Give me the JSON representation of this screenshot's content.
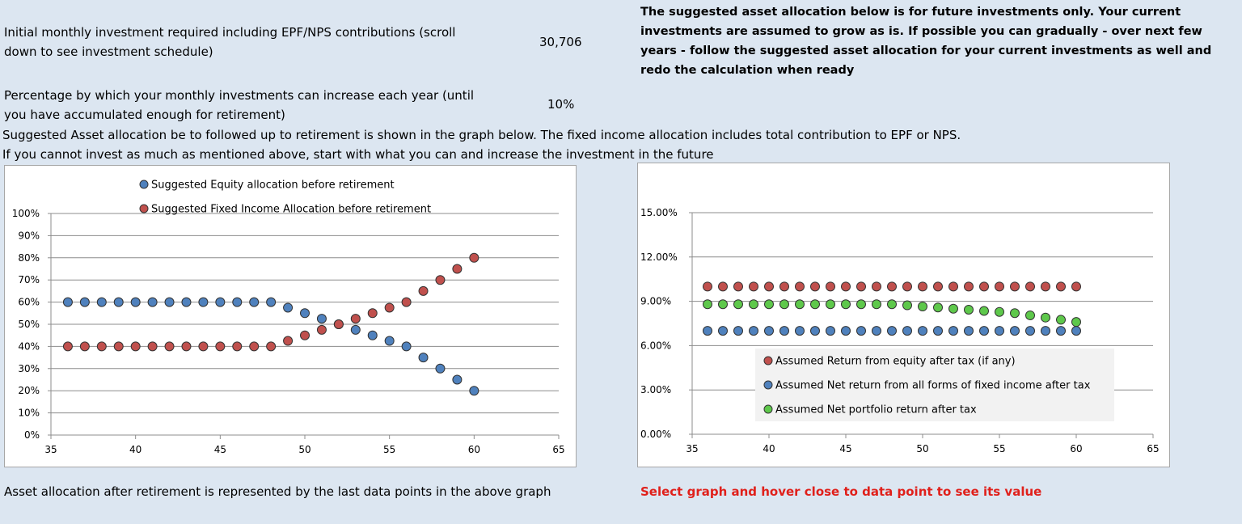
{
  "inputs": {
    "monthly_label": "Initial monthly investment required including EPF/NPS contributions (scroll down to see investment schedule)",
    "monthly_value": "30,706",
    "increase_label": "Percentage by which your monthly investments can increase each year (until you have accumulated enough for retirement)",
    "increase_value": "10%"
  },
  "note_right": "The suggested asset allocation below is for future investments only. Your current investments are assumed to grow as is. If possible you can gradually - over next few years - follow the suggested asset allocation for your current investments as well and redo the calculation when ready",
  "line_suggested": "Suggested Asset allocation be to followed up to retirement is shown in the graph below. The fixed income allocation includes total contribution to EPF or NPS.",
  "line_invest": "If you cannot invest as much as mentioned above, start with what you can and increase the investment in the future",
  "footer_left": "Asset allocation after retirement is represented by the last data points in the above graph",
  "footer_right": "Select graph and hover close to data point to see its value",
  "colors": {
    "equity": "#4f81bd",
    "fixed": "#c0504d",
    "portfolio": "#5ec84b",
    "warning": "#e0201b",
    "background": "#dce6f1"
  },
  "chart_data": [
    {
      "type": "scatter",
      "title": "",
      "xlabel": "",
      "ylabel": "",
      "xlim": [
        35,
        65
      ],
      "ylim": [
        0,
        100
      ],
      "x_ticks": [
        "35",
        "40",
        "45",
        "50",
        "55",
        "60",
        "65"
      ],
      "y_ticks": [
        "0%",
        "10%",
        "20%",
        "30%",
        "40%",
        "50%",
        "60%",
        "70%",
        "80%",
        "90%",
        "100%"
      ],
      "grid": true,
      "legend_position": "top-center",
      "x": [
        36,
        37,
        38,
        39,
        40,
        41,
        42,
        43,
        44,
        45,
        46,
        47,
        48,
        49,
        50,
        51,
        52,
        53,
        54,
        55,
        56,
        57,
        58,
        59,
        60
      ],
      "series": [
        {
          "name": "Suggested Equity allocation before retirement",
          "color": "#4f81bd",
          "values": [
            60,
            60,
            60,
            60,
            60,
            60,
            60,
            60,
            60,
            60,
            60,
            60,
            60,
            57.5,
            55,
            52.5,
            50,
            47.5,
            45,
            42.5,
            40,
            35,
            30,
            25,
            20
          ]
        },
        {
          "name": "Suggested Fixed Income Allocation before retirement",
          "color": "#c0504d",
          "values": [
            40,
            40,
            40,
            40,
            40,
            40,
            40,
            40,
            40,
            40,
            40,
            40,
            40,
            42.5,
            45,
            47.5,
            50,
            52.5,
            55,
            57.5,
            60,
            65,
            70,
            75,
            80
          ]
        }
      ]
    },
    {
      "type": "scatter",
      "title": "",
      "xlabel": "",
      "ylabel": "",
      "xlim": [
        35,
        65
      ],
      "ylim": [
        0,
        15
      ],
      "x_ticks": [
        "35",
        "40",
        "45",
        "50",
        "55",
        "60",
        "65"
      ],
      "y_ticks": [
        "0.00%",
        "3.00%",
        "6.00%",
        "9.00%",
        "12.00%",
        "15.00%"
      ],
      "grid": true,
      "legend_position": "bottom-right",
      "x": [
        36,
        37,
        38,
        39,
        40,
        41,
        42,
        43,
        44,
        45,
        46,
        47,
        48,
        49,
        50,
        51,
        52,
        53,
        54,
        55,
        56,
        57,
        58,
        59,
        60
      ],
      "series": [
        {
          "name": "Assumed Return from equity after tax (if any)",
          "color": "#c0504d",
          "values": [
            10,
            10,
            10,
            10,
            10,
            10,
            10,
            10,
            10,
            10,
            10,
            10,
            10,
            10,
            10,
            10,
            10,
            10,
            10,
            10,
            10,
            10,
            10,
            10,
            10
          ]
        },
        {
          "name": "Assumed Net return from all forms of fixed income after tax",
          "color": "#4f81bd",
          "values": [
            7,
            7,
            7,
            7,
            7,
            7,
            7,
            7,
            7,
            7,
            7,
            7,
            7,
            7,
            7,
            7,
            7,
            7,
            7,
            7,
            7,
            7,
            7,
            7,
            7
          ]
        },
        {
          "name": "Assumed Net portfolio return after tax",
          "color": "#5ec84b",
          "values": [
            8.8,
            8.8,
            8.8,
            8.8,
            8.8,
            8.8,
            8.8,
            8.8,
            8.8,
            8.8,
            8.8,
            8.8,
            8.8,
            8.73,
            8.65,
            8.58,
            8.5,
            8.43,
            8.35,
            8.28,
            8.2,
            8.05,
            7.9,
            7.75,
            7.6
          ]
        }
      ]
    }
  ]
}
